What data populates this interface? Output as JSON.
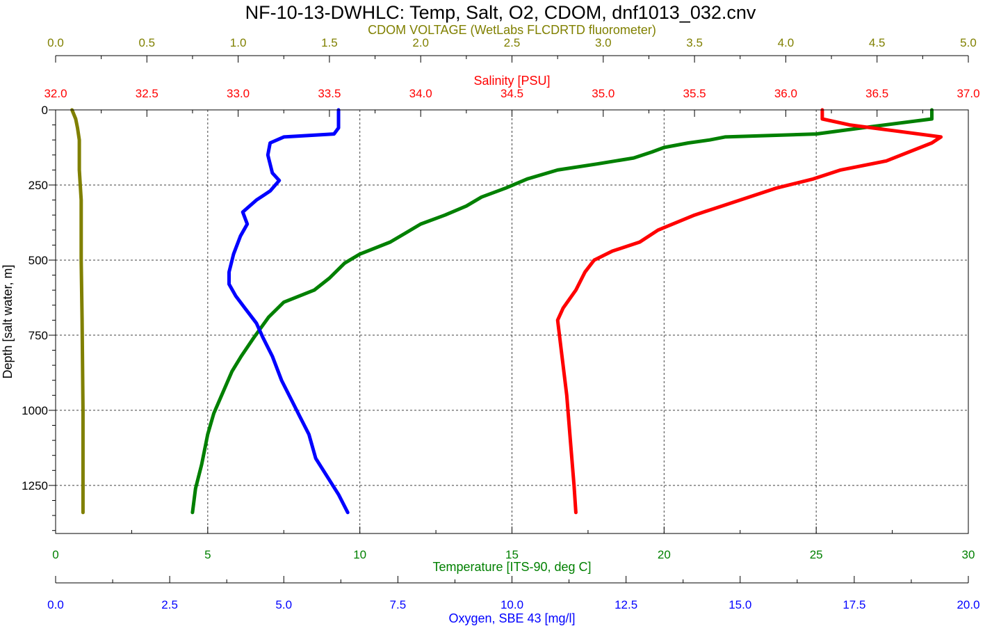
{
  "chart_data": {
    "type": "line",
    "title": "NF-10-13-DWHLC: Temp, Salt, O2, CDOM, dnf1013_032.cnv",
    "y_axis": {
      "label": "Depth [salt water, m]",
      "ylim": [
        1410,
        0
      ],
      "ticks": [
        "0",
        "250",
        "500",
        "750",
        "1000",
        "1250"
      ],
      "tick_values": [
        0,
        250,
        500,
        750,
        1000,
        1250
      ],
      "inverted": true,
      "grid": true
    },
    "x_axes": [
      {
        "id": "cdom",
        "label": "CDOM VOLTAGE (WetLabs FLCDRTD fluorometer)",
        "position": "top",
        "color": "#808000",
        "xlim": [
          0,
          5
        ],
        "ticks": [
          "0.0",
          "0.5",
          "1.0",
          "1.5",
          "2.0",
          "2.5",
          "3.0",
          "3.5",
          "4.0",
          "4.5",
          "5.0"
        ],
        "tick_values": [
          0,
          0.5,
          1.0,
          1.5,
          2.0,
          2.5,
          3.0,
          3.5,
          4.0,
          4.5,
          5.0
        ]
      },
      {
        "id": "salinity",
        "label": "Salinity [PSU]",
        "position": "top",
        "color": "#ff0000",
        "xlim": [
          32,
          37
        ],
        "ticks": [
          "32.0",
          "32.5",
          "33.0",
          "33.5",
          "34.0",
          "34.5",
          "35.0",
          "35.5",
          "36.0",
          "36.5",
          "37.0"
        ],
        "tick_values": [
          32,
          32.5,
          33,
          33.5,
          34,
          34.5,
          35,
          35.5,
          36,
          36.5,
          37
        ]
      },
      {
        "id": "temperature",
        "label": "Temperature [ITS-90, deg C]",
        "position": "bottom",
        "color": "#008000",
        "xlim": [
          0,
          30
        ],
        "ticks": [
          "0",
          "5",
          "10",
          "15",
          "20",
          "25",
          "30"
        ],
        "tick_values": [
          0,
          5,
          10,
          15,
          20,
          25,
          30
        ],
        "grid": true
      },
      {
        "id": "oxygen",
        "label": "Oxygen, SBE 43 [mg/l]",
        "position": "bottom",
        "color": "#0000ff",
        "xlim": [
          0,
          20
        ],
        "ticks": [
          "0.0",
          "2.5",
          "5.0",
          "7.5",
          "10.0",
          "12.5",
          "15.0",
          "17.5",
          "20.0"
        ],
        "tick_values": [
          0,
          2.5,
          5,
          7.5,
          10,
          12.5,
          15,
          17.5,
          20
        ]
      }
    ],
    "series": [
      {
        "axis": "temperature",
        "color": "#008000",
        "points": [
          [
            28.8,
            0
          ],
          [
            28.8,
            30
          ],
          [
            26.5,
            60
          ],
          [
            25.0,
            80
          ],
          [
            22.0,
            90
          ],
          [
            21.5,
            100
          ],
          [
            20.8,
            110
          ],
          [
            20.0,
            125
          ],
          [
            19.6,
            140
          ],
          [
            19.0,
            160
          ],
          [
            17.8,
            180
          ],
          [
            16.5,
            200
          ],
          [
            15.5,
            230
          ],
          [
            14.8,
            260
          ],
          [
            14.0,
            290
          ],
          [
            13.5,
            320
          ],
          [
            12.8,
            350
          ],
          [
            12.0,
            380
          ],
          [
            11.5,
            410
          ],
          [
            11.0,
            440
          ],
          [
            10.0,
            480
          ],
          [
            9.5,
            510
          ],
          [
            9.0,
            560
          ],
          [
            8.5,
            600
          ],
          [
            7.5,
            640
          ],
          [
            7.0,
            690
          ],
          [
            6.5,
            760
          ],
          [
            6.1,
            820
          ],
          [
            5.8,
            870
          ],
          [
            5.5,
            940
          ],
          [
            5.2,
            1010
          ],
          [
            5.0,
            1080
          ],
          [
            4.8,
            1180
          ],
          [
            4.6,
            1260
          ],
          [
            4.5,
            1340
          ]
        ]
      },
      {
        "axis": "salinity",
        "color": "#ff0000",
        "points": [
          [
            36.2,
            0
          ],
          [
            36.2,
            30
          ],
          [
            36.35,
            50
          ],
          [
            36.6,
            70
          ],
          [
            36.85,
            90
          ],
          [
            36.8,
            110
          ],
          [
            36.55,
            170
          ],
          [
            36.3,
            200
          ],
          [
            36.15,
            230
          ],
          [
            35.95,
            260
          ],
          [
            35.8,
            290
          ],
          [
            35.65,
            320
          ],
          [
            35.5,
            350
          ],
          [
            35.3,
            400
          ],
          [
            35.2,
            440
          ],
          [
            35.05,
            470
          ],
          [
            34.95,
            500
          ],
          [
            34.9,
            540
          ],
          [
            34.85,
            600
          ],
          [
            34.78,
            660
          ],
          [
            34.75,
            700
          ],
          [
            34.77,
            800
          ],
          [
            34.8,
            950
          ],
          [
            34.82,
            1100
          ],
          [
            34.84,
            1250
          ],
          [
            34.85,
            1340
          ]
        ]
      },
      {
        "axis": "oxygen",
        "color": "#0000ff",
        "points": [
          [
            6.2,
            0
          ],
          [
            6.2,
            60
          ],
          [
            6.1,
            80
          ],
          [
            5.0,
            90
          ],
          [
            4.7,
            110
          ],
          [
            4.65,
            150
          ],
          [
            4.75,
            210
          ],
          [
            4.9,
            235
          ],
          [
            4.7,
            270
          ],
          [
            4.4,
            300
          ],
          [
            4.1,
            340
          ],
          [
            4.2,
            380
          ],
          [
            4.05,
            420
          ],
          [
            3.9,
            480
          ],
          [
            3.8,
            540
          ],
          [
            3.8,
            580
          ],
          [
            3.95,
            620
          ],
          [
            4.15,
            660
          ],
          [
            4.4,
            710
          ],
          [
            4.55,
            760
          ],
          [
            4.75,
            820
          ],
          [
            4.95,
            900
          ],
          [
            5.15,
            960
          ],
          [
            5.35,
            1020
          ],
          [
            5.55,
            1080
          ],
          [
            5.7,
            1160
          ],
          [
            5.95,
            1220
          ],
          [
            6.2,
            1280
          ],
          [
            6.4,
            1340
          ]
        ]
      },
      {
        "axis": "cdom",
        "color": "#808000",
        "points": [
          [
            0.09,
            0
          ],
          [
            0.11,
            30
          ],
          [
            0.12,
            60
          ],
          [
            0.13,
            100
          ],
          [
            0.13,
            200
          ],
          [
            0.14,
            300
          ],
          [
            0.14,
            500
          ],
          [
            0.145,
            700
          ],
          [
            0.15,
            1000
          ],
          [
            0.15,
            1340
          ]
        ]
      }
    ]
  }
}
